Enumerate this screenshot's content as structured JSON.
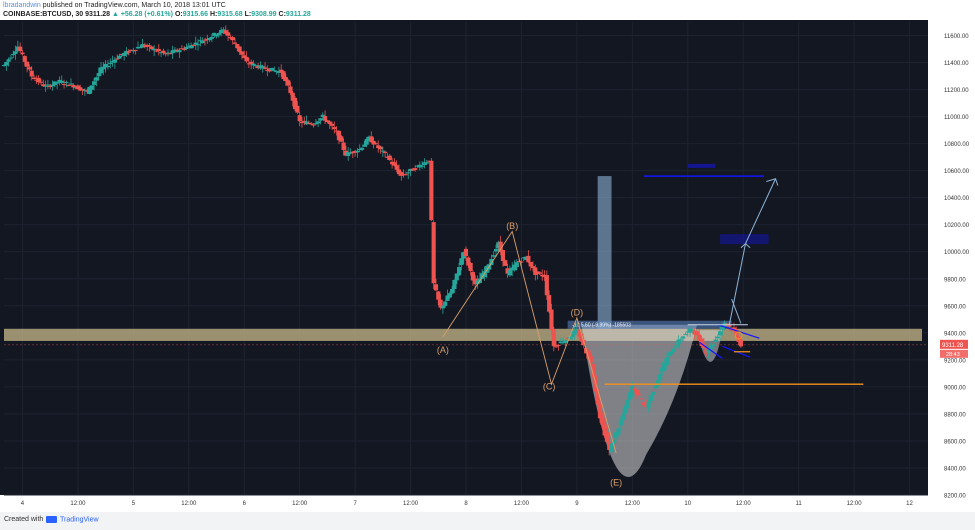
{
  "header": {
    "author": "lbradandwin",
    "published_text": "published on TradingView.com, March 10, 2018 13:01 UTC",
    "symbol_line": "COINBASE:BTCUSD, 30",
    "last": "9311.28",
    "change": "▲ +56.28 (+0.61%)",
    "o_label": "O:",
    "o_value": "9315.66",
    "h_label": "H:",
    "h_value": "9315.68",
    "l_label": "L:",
    "l_value": "9308.99",
    "c_label": "C:",
    "c_value": "9311.28"
  },
  "footer": {
    "created_with": "Created with",
    "brand": "TradingView"
  },
  "colors": {
    "background": "#131722",
    "up": "#26a69a",
    "down": "#ef5350",
    "zone": "#c8b88a",
    "wave": "#d9a06b",
    "orange_line": "#f7931a",
    "pattern": "#d9d9d9",
    "target_line": "#1414ff",
    "target_box": "#8eb3d6"
  },
  "chart_data": {
    "type": "candlestick",
    "symbol": "COINBASE:BTCUSD",
    "interval": "30",
    "ylim": [
      8200,
      11700
    ],
    "y_ticks": [
      8200,
      8400,
      8600,
      8800,
      9000,
      9200,
      9400,
      9600,
      9800,
      10000,
      10200,
      10400,
      10600,
      10800,
      11000,
      11200,
      11400,
      11600
    ],
    "y_tick_labels": [
      "8200.00",
      "8400.00",
      "8600.00",
      "8800.00",
      "9000.00",
      "9200.00",
      "9400.00",
      "9600.00",
      "9800.00",
      "10000.00",
      "10200.00",
      "10400.00",
      "10600.00",
      "10800.00",
      "11000.00",
      "11200.00",
      "11400.00",
      "11600.00"
    ],
    "xlim": [
      0,
      400
    ],
    "x_ticks": [
      {
        "t": 8,
        "label": "4"
      },
      {
        "t": 32,
        "label": "12:00"
      },
      {
        "t": 56,
        "label": "5"
      },
      {
        "t": 80,
        "label": "12:00"
      },
      {
        "t": 104,
        "label": "6"
      },
      {
        "t": 128,
        "label": "12:00"
      },
      {
        "t": 152,
        "label": "7"
      },
      {
        "t": 176,
        "label": "12:00"
      },
      {
        "t": 200,
        "label": "8"
      },
      {
        "t": 224,
        "label": "12:00"
      },
      {
        "t": 248,
        "label": "9"
      },
      {
        "t": 272,
        "label": "12:00"
      },
      {
        "t": 296,
        "label": "10"
      },
      {
        "t": 320,
        "label": "12:00"
      },
      {
        "t": 344,
        "label": "11"
      },
      {
        "t": 368,
        "label": "12:00"
      },
      {
        "t": 392,
        "label": "12"
      }
    ],
    "price_path": [
      [
        0,
        11380
      ],
      [
        6,
        11520
      ],
      [
        12,
        11300
      ],
      [
        18,
        11220
      ],
      [
        24,
        11260
      ],
      [
        30,
        11230
      ],
      [
        36,
        11180
      ],
      [
        42,
        11350
      ],
      [
        50,
        11450
      ],
      [
        60,
        11530
      ],
      [
        70,
        11460
      ],
      [
        80,
        11520
      ],
      [
        88,
        11580
      ],
      [
        95,
        11640
      ],
      [
        100,
        11540
      ],
      [
        105,
        11400
      ],
      [
        112,
        11360
      ],
      [
        120,
        11330
      ],
      [
        124,
        11180
      ],
      [
        128,
        10960
      ],
      [
        134,
        10950
      ],
      [
        138,
        11000
      ],
      [
        144,
        10880
      ],
      [
        148,
        10720
      ],
      [
        154,
        10760
      ],
      [
        158,
        10840
      ],
      [
        166,
        10700
      ],
      [
        172,
        10560
      ],
      [
        180,
        10640
      ],
      [
        184,
        10680
      ],
      [
        186,
        9760
      ],
      [
        189,
        9580
      ],
      [
        194,
        9720
      ],
      [
        199,
        10010
      ],
      [
        204,
        9750
      ],
      [
        209,
        9880
      ],
      [
        214,
        10060
      ],
      [
        218,
        9830
      ],
      [
        222,
        9920
      ],
      [
        226,
        9960
      ],
      [
        230,
        9840
      ],
      [
        234,
        9820
      ],
      [
        238,
        9300
      ],
      [
        243,
        9350
      ],
      [
        248,
        9420
      ],
      [
        254,
        9180
      ],
      [
        258,
        8780
      ],
      [
        262,
        8530
      ],
      [
        266,
        8700
      ],
      [
        272,
        9000
      ],
      [
        278,
        8850
      ],
      [
        284,
        9100
      ],
      [
        288,
        9250
      ],
      [
        294,
        9380
      ],
      [
        298,
        9430
      ],
      [
        304,
        9260
      ],
      [
        308,
        9350
      ],
      [
        312,
        9480
      ],
      [
        316,
        9410
      ],
      [
        319,
        9311
      ]
    ],
    "last_price": "9311.28",
    "countdown": "28:43",
    "zone": {
      "low": 9340,
      "high": 9430
    },
    "wave_labels": [
      {
        "label": "(A)",
        "t": 190,
        "v": 9250
      },
      {
        "label": "(B)",
        "t": 220,
        "v": 10170
      },
      {
        "label": "(C)",
        "t": 236,
        "v": 8980
      },
      {
        "label": "(D)",
        "t": 248,
        "v": 9530
      },
      {
        "label": "(E)",
        "t": 265,
        "v": 8270
      }
    ],
    "wave_path": [
      [
        190,
        9370
      ],
      [
        220,
        10150
      ],
      [
        237,
        9020
      ],
      [
        248,
        9510
      ],
      [
        265,
        8510
      ]
    ],
    "measure_label": "-10 5.60 (-9.99%) -185503",
    "orange_line": {
      "t0": 260,
      "t1": 372,
      "v": 9020
    }
  }
}
